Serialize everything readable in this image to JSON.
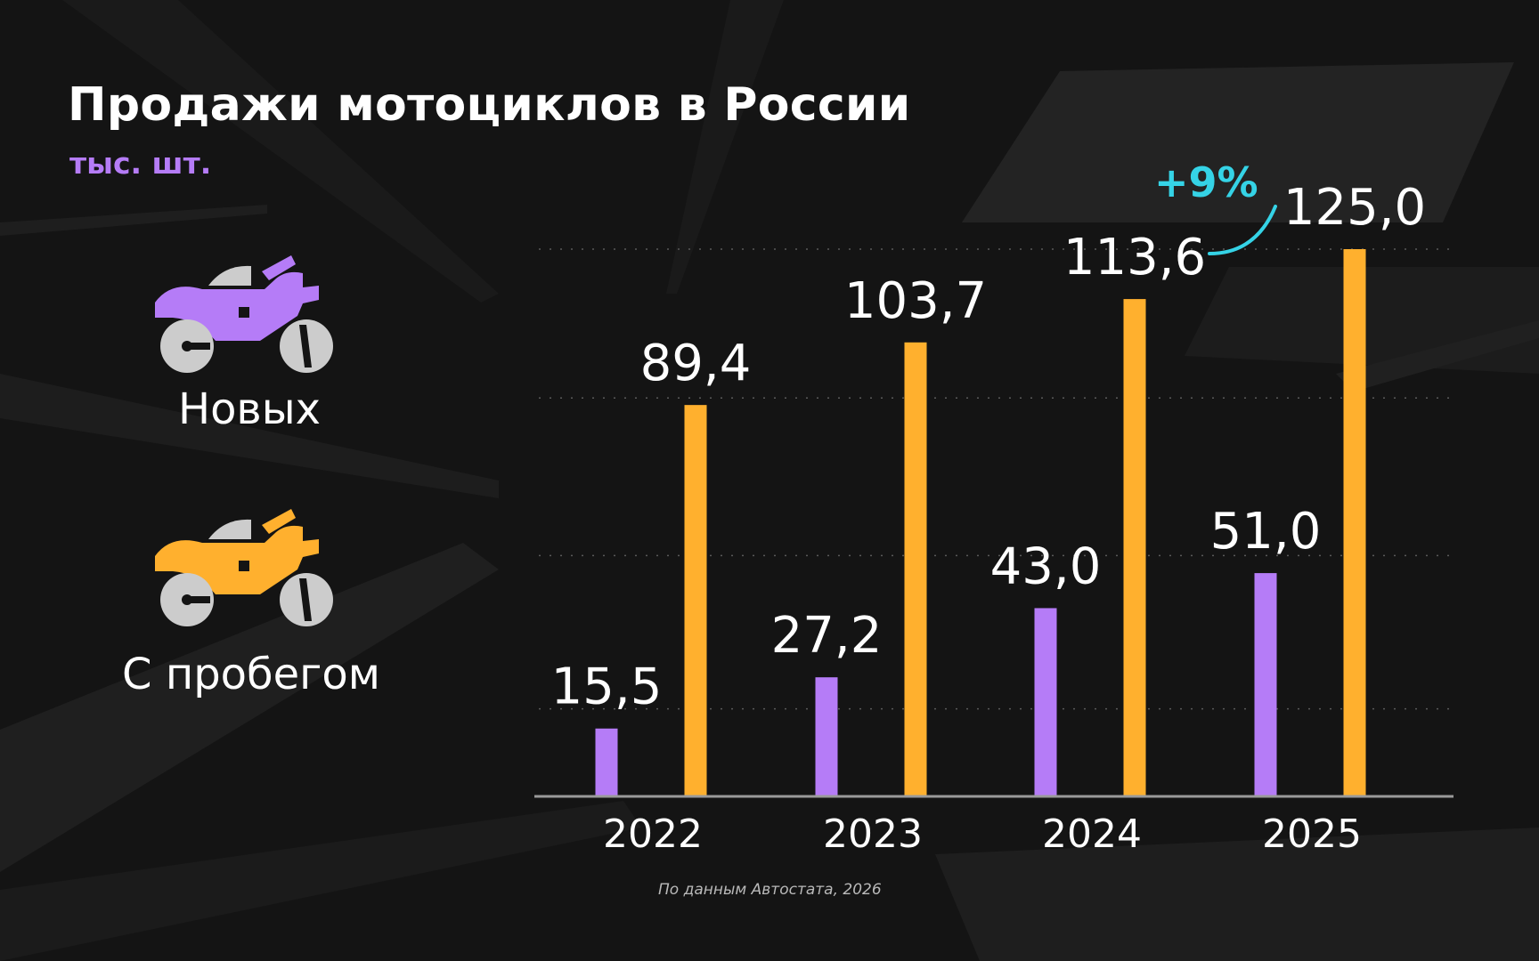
{
  "title": "Продажи мотоциклов в России",
  "unit": "тыс. шт.",
  "legend": [
    {
      "label": "Новых",
      "color": "#b57cf7",
      "icon": "motorcycle-icon"
    },
    {
      "label": "С пробегом",
      "color": "#ffb02e",
      "icon": "motorcycle-icon"
    }
  ],
  "growth_annotation": "+9%",
  "source": "По данным Автостата, 2026",
  "colors": {
    "new": "#b57cf7",
    "used": "#ffb02e",
    "accent": "#35d3e6",
    "background": "#141414",
    "wheel": "#cccccc"
  },
  "chart_data": {
    "type": "bar",
    "categories": [
      "2022",
      "2023",
      "2024",
      "2025"
    ],
    "series": [
      {
        "name": "Новых",
        "values": [
          15.5,
          27.2,
          43.0,
          51.0
        ],
        "labels": [
          "15,5",
          "27,2",
          "43,0",
          "51,0"
        ]
      },
      {
        "name": "С пробегом",
        "values": [
          89.4,
          103.7,
          113.6,
          125.0
        ],
        "labels": [
          "89,4",
          "103,7",
          "113,6",
          "125,0"
        ]
      }
    ],
    "title": "Продажи мотоциклов в России",
    "ylabel": "тыс. шт.",
    "ylim": [
      0,
      125
    ],
    "grid": true,
    "legend_position": "left"
  }
}
